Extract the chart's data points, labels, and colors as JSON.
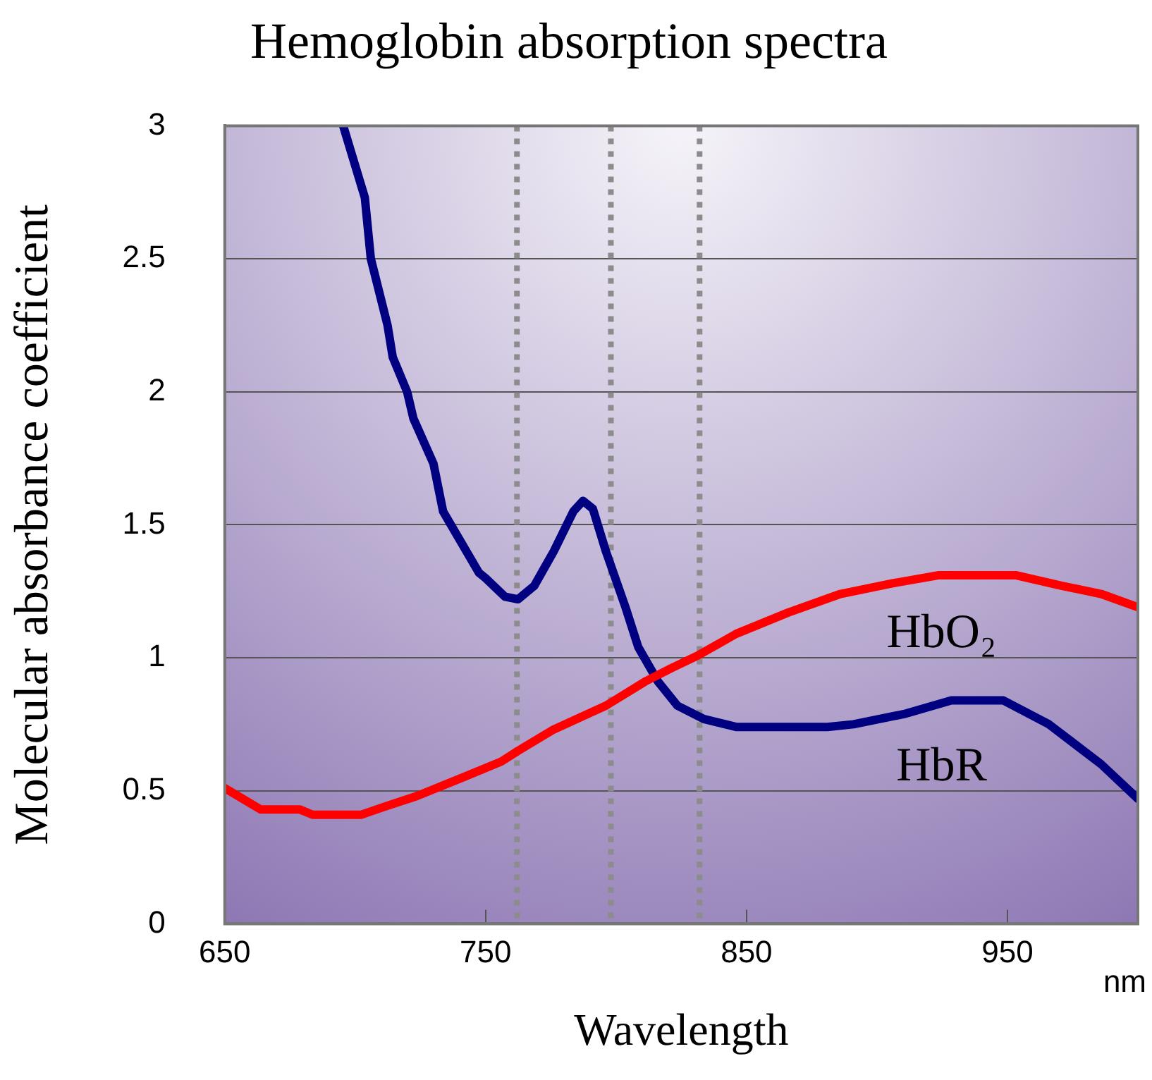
{
  "chart_data": {
    "type": "line",
    "title": "Hemoglobin absorption spectra",
    "xlabel": "Wavelength",
    "ylabel": "Molecular absorbance coefficient",
    "annotations": [
      "nm"
    ],
    "xlim": [
      650,
      1000
    ],
    "xticks": [
      650,
      750,
      850,
      950
    ],
    "ylim": [
      0,
      3
    ],
    "yticks": [
      0,
      0.5,
      1,
      1.5,
      2,
      2.5,
      3
    ],
    "grid": "y",
    "legend": false,
    "marker": "none",
    "line_style": "solid",
    "series": [
      {
        "name": "HbO₂",
        "color": "#ff0000",
        "x": [
          650,
          663.7,
          678.7,
          683.7,
          702.4,
          711.2,
          723.6,
          741.2,
          756,
          762.4,
          776,
          796.1,
          811,
          821,
          831.6,
          846,
          866,
          886,
          906,
          923.4,
          953.4,
          971,
          985.9,
          1000
        ],
        "values": [
          0.51,
          0.43,
          0.43,
          0.41,
          0.41,
          0.44,
          0.48,
          0.55,
          0.61,
          0.65,
          0.73,
          0.82,
          0.91,
          0.96,
          1.01,
          1.09,
          1.17,
          1.24,
          1.28,
          1.31,
          1.31,
          1.27,
          1.24,
          1.19
        ]
      },
      {
        "name": "HbR",
        "color": "#000080",
        "x": [
          695.4,
          703.7,
          706,
          712.4,
          714.4,
          719.9,
          722.3,
          730,
          733.7,
          747.4,
          749.9,
          757.4,
          762.4,
          768.6,
          776.1,
          783.6,
          787.3,
          791.1,
          796.1,
          803.6,
          808.5,
          816.1,
          823.5,
          833.6,
          846,
          881,
          891,
          911,
          928.5,
          948.4,
          965.9,
          985.9,
          1000
        ],
        "values": [
          3.0,
          2.73,
          2.5,
          2.25,
          2.13,
          2.0,
          1.9,
          1.73,
          1.55,
          1.32,
          1.3,
          1.23,
          1.22,
          1.27,
          1.4,
          1.55,
          1.59,
          1.56,
          1.4,
          1.19,
          1.04,
          0.91,
          0.82,
          0.77,
          0.74,
          0.74,
          0.75,
          0.79,
          0.84,
          0.84,
          0.75,
          0.6,
          0.47
        ]
      }
    ],
    "ref_lines": [
      {
        "axis": "x",
        "value": 762,
        "color": "#8c8c8c",
        "line_style": "dotted"
      },
      {
        "axis": "x",
        "value": 798,
        "color": "#8c8c8c",
        "line_style": "dotted"
      },
      {
        "axis": "x",
        "value": 832,
        "color": "#8c8c8c",
        "line_style": "dotted"
      }
    ]
  }
}
